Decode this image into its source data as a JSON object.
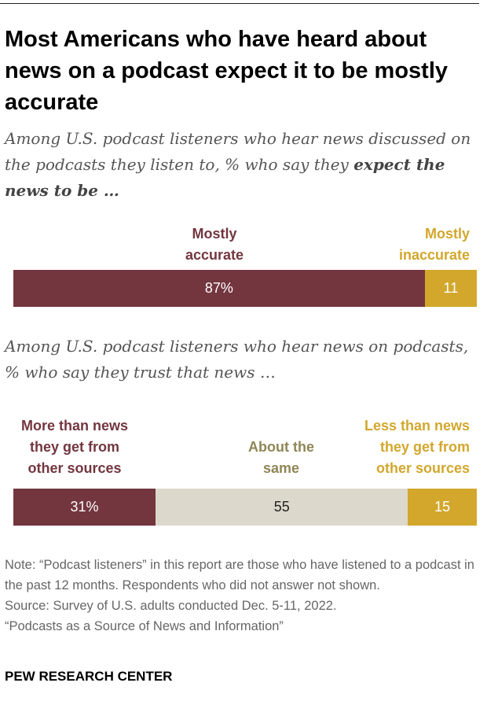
{
  "title": "Most Americans who have heard about news on a podcast expect it to be mostly accurate",
  "colors": {
    "maroon": "#73363f",
    "gold": "#d2a72c",
    "beige": "#dcd8cb",
    "olive_label": "#8f8657"
  },
  "chart_data": [
    {
      "type": "bar",
      "orientation": "horizontal-stacked",
      "subtitle": {
        "text": "Among U.S. podcast listeners who hear news discussed on the podcasts they listen to, % who say they ",
        "emphasis": "expect the news to be …"
      },
      "series": [
        {
          "name": "Mostly accurate",
          "label_lines": [
            "Mostly",
            "accurate"
          ],
          "value": 87,
          "display": "87%",
          "color": "#73363f",
          "text_color": "#ffffff",
          "label_color": "#73363f"
        },
        {
          "name": "Mostly inaccurate",
          "label_lines": [
            "Mostly",
            "inaccurate"
          ],
          "value": 11,
          "display": "11",
          "color": "#d2a72c",
          "text_color": "#ffffff",
          "label_color": "#d2a72c"
        }
      ]
    },
    {
      "type": "bar",
      "orientation": "horizontal-stacked",
      "subtitle": {
        "text": "Among U.S. podcast listeners who hear news on podcasts, % who say they trust that news …",
        "emphasis": ""
      },
      "series": [
        {
          "name": "More than news they get from other sources",
          "label_lines": [
            "More than news",
            "they get from",
            "other sources"
          ],
          "value": 31,
          "display": "31%",
          "color": "#73363f",
          "text_color": "#ffffff",
          "label_color": "#73363f"
        },
        {
          "name": "About the same",
          "label_lines": [
            "About the",
            "same"
          ],
          "value": 55,
          "display": "55",
          "color": "#dcd8cb",
          "text_color": "#222222",
          "label_color": "#8f8657"
        },
        {
          "name": "Less than news they get from other sources",
          "label_lines": [
            "Less than news",
            "they get from",
            "other sources"
          ],
          "value": 15,
          "display": "15",
          "color": "#d2a72c",
          "text_color": "#ffffff",
          "label_color": "#d2a72c"
        }
      ]
    }
  ],
  "note": "Note: “Podcast listeners” in this report are those who have listened to a podcast in the past 12 months. Respondents who did not answer not shown.",
  "source": "Source: Survey of U.S. adults conducted Dec. 5-11, 2022.",
  "report": "“Podcasts as a Source of News and Information”",
  "brand": "PEW RESEARCH CENTER"
}
